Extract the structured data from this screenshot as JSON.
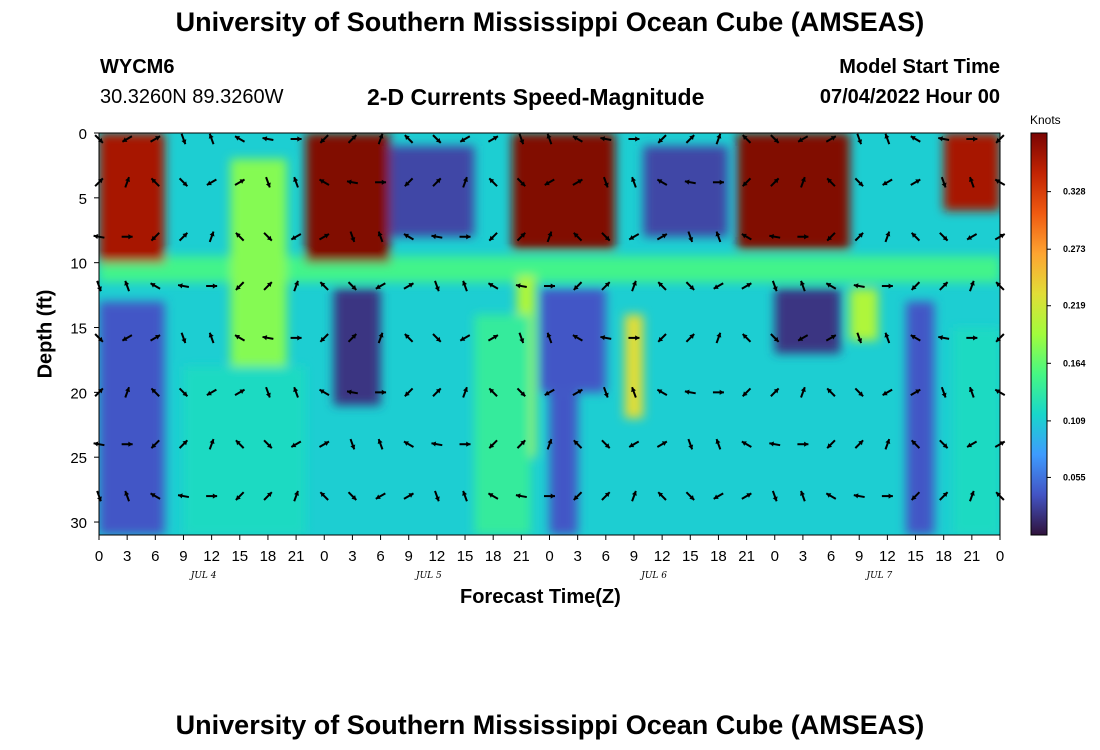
{
  "header": {
    "title_top": "University of Southern Mississippi Ocean Cube (AMSEAS)",
    "title_bottom": "University of Southern Mississippi Ocean Cube (AMSEAS)",
    "station_id": "WYCM6",
    "coords": "30.3260N  89.3260W",
    "subtitle": "2-D Currents Speed-Magnitude",
    "model_start_label": "Model Start Time",
    "model_start_value": "07/04/2022 Hour 00"
  },
  "chart_data": {
    "type": "heatmap",
    "title": "2-D Currents Speed-Magnitude",
    "xlabel": "Forecast Time(Z)",
    "ylabel": "Depth (ft)",
    "x_range_hours": [
      0,
      96
    ],
    "y_range_ft": [
      0,
      31
    ],
    "x_tick_labels": [
      "0",
      "3",
      "6",
      "9",
      "12",
      "15",
      "18",
      "21",
      "0",
      "3",
      "6",
      "9",
      "12",
      "15",
      "18",
      "21",
      "0",
      "3",
      "6",
      "9",
      "12",
      "15",
      "18",
      "21",
      "0",
      "3",
      "6",
      "9",
      "12",
      "15",
      "18",
      "21",
      "0"
    ],
    "y_tick_labels": [
      "0",
      "5",
      "10",
      "15",
      "20",
      "25",
      "30"
    ],
    "day_labels": [
      {
        "label": "JUL 4",
        "hour": 12
      },
      {
        "label": "JUL 5",
        "hour": 36
      },
      {
        "label": "JUL 6",
        "hour": 60
      },
      {
        "label": "JUL 7",
        "hour": 84
      }
    ],
    "colorbar": {
      "title": "Knots",
      "min": 0.0,
      "max": 0.384,
      "ticks": [
        "0.328",
        "0.273",
        "0.219",
        "0.164",
        "0.109",
        "0.055"
      ],
      "tick_values": [
        0.328,
        0.273,
        0.219,
        0.164,
        0.109,
        0.055
      ]
    },
    "speed_features": [
      {
        "h0": 0,
        "h1": 7,
        "d0": 0,
        "d1": 10,
        "v": 0.36
      },
      {
        "h0": 14,
        "h1": 20,
        "d0": 2,
        "d1": 19,
        "v": 0.18
      },
      {
        "h0": 22,
        "h1": 31,
        "d0": 0,
        "d1": 10,
        "v": 0.38
      },
      {
        "h0": 44,
        "h1": 55,
        "d0": 0,
        "d1": 9,
        "v": 0.38
      },
      {
        "h0": 68,
        "h1": 80,
        "d0": 0,
        "d1": 9,
        "v": 0.38
      },
      {
        "h0": 90,
        "h1": 96,
        "d0": 0,
        "d1": 6,
        "v": 0.36
      },
      {
        "h0": 44.5,
        "h1": 46.5,
        "d0": 11,
        "d1": 25,
        "v": 0.2
      },
      {
        "h0": 56,
        "h1": 58,
        "d0": 14,
        "d1": 22,
        "v": 0.23
      },
      {
        "h0": 80,
        "h1": 83,
        "d0": 12,
        "d1": 16,
        "v": 0.2
      },
      {
        "h0": 91,
        "h1": 96,
        "d0": 15,
        "d1": 31,
        "v": 0.12
      },
      {
        "h0": 25,
        "h1": 30,
        "d0": 12,
        "d1": 21,
        "v": 0.02
      },
      {
        "h0": 31,
        "h1": 40,
        "d0": 1,
        "d1": 8,
        "v": 0.03
      },
      {
        "h0": 58,
        "h1": 67,
        "d0": 1,
        "d1": 8,
        "v": 0.03
      },
      {
        "h0": 72,
        "h1": 79,
        "d0": 12,
        "d1": 17,
        "v": 0.02
      },
      {
        "h0": 47,
        "h1": 54,
        "d0": 12,
        "d1": 20,
        "v": 0.04
      },
      {
        "h0": 0,
        "h1": 7,
        "d0": 13,
        "d1": 31,
        "v": 0.04
      },
      {
        "h0": 48,
        "h1": 51,
        "d0": 20,
        "d1": 31,
        "v": 0.04
      },
      {
        "h0": 86,
        "h1": 89,
        "d0": 13,
        "d1": 31,
        "v": 0.04
      },
      {
        "h0": 9,
        "h1": 22,
        "d0": 18,
        "d1": 31,
        "v": 0.12
      },
      {
        "h0": 40,
        "h1": 46,
        "d0": 14,
        "d1": 31,
        "v": 0.14
      }
    ],
    "arrow_depths_ft": [
      0,
      3.8,
      8,
      11.8,
      15.8,
      20,
      24,
      28
    ],
    "arrow_hours": [
      0,
      3,
      6,
      9,
      12,
      15,
      18,
      21,
      24,
      27,
      30,
      33,
      36,
      39,
      42,
      45,
      48,
      51,
      54,
      57,
      60,
      63,
      66,
      69,
      72,
      75,
      78,
      81,
      84,
      87,
      90,
      93,
      96
    ]
  }
}
